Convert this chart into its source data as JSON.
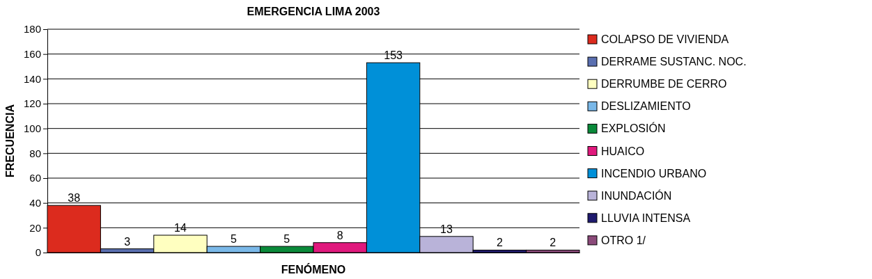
{
  "chart_data": {
    "type": "bar",
    "title": "EMERGENCIA LIMA 2003",
    "xlabel": "FENÓMENO",
    "ylabel": "FRECUENCIA",
    "categories": [
      null
    ],
    "series": [
      {
        "name": "COLAPSO DE VIVIENDA",
        "color": "#dc2b1e",
        "values": [
          38
        ]
      },
      {
        "name": "DERRAME SUSTANC. NOC.",
        "color": "#5a6fb0",
        "values": [
          3
        ]
      },
      {
        "name": "DERRUMBE DE CERRO",
        "color": "#ffffc0",
        "values": [
          14
        ]
      },
      {
        "name": "DESLIZAMIENTO",
        "color": "#7ab8e8",
        "values": [
          5
        ]
      },
      {
        "name": "EXPLOSIÓN",
        "color": "#0a8a3a",
        "values": [
          5
        ]
      },
      {
        "name": "HUAICO",
        "color": "#e0197d",
        "values": [
          8
        ]
      },
      {
        "name": "INCENDIO URBANO",
        "color": "#0090d8",
        "values": [
          153
        ]
      },
      {
        "name": "INUNDACIÓN",
        "color": "#b9b3d9",
        "values": [
          13
        ]
      },
      {
        "name": "LLUVIA INTENSA",
        "color": "#1f1a6e",
        "values": [
          2
        ]
      },
      {
        "name": "OTRO 1/",
        "color": "#8b4a7a",
        "values": [
          2
        ]
      }
    ],
    "ylim": [
      0,
      180
    ],
    "yticks": [
      0,
      20,
      40,
      60,
      80,
      100,
      120,
      140,
      160,
      180
    ],
    "grid": "y",
    "legend": "right",
    "data_labels": true
  }
}
